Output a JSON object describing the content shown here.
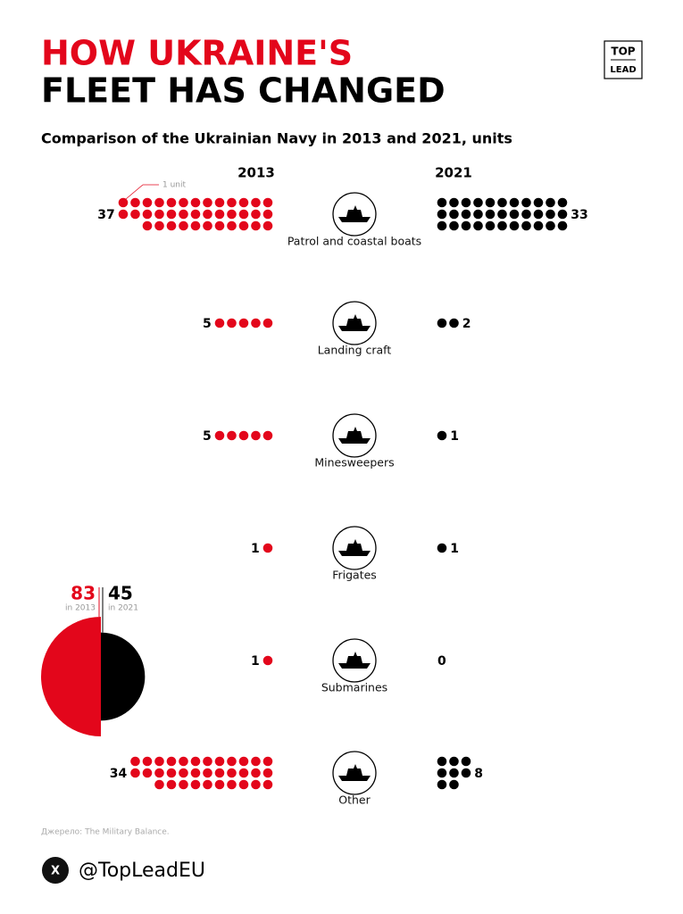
{
  "header": {
    "title_line1": "HOW UKRAINE'S",
    "title_line2": "FLEET HAS CHANGED",
    "subtitle": "Comparison of the Ukrainian Navy in 2013 and 2021, units",
    "logo_line1": "TOP",
    "logo_line2": "LEAD"
  },
  "chart_data": [
    {
      "type": "unit",
      "annotation": "1 unit",
      "categories": [
        "Patrol and coastal boats",
        "Landing craft",
        "Minesweepers",
        "Frigates",
        "Submarines",
        "Other"
      ],
      "series": [
        {
          "name": "2013",
          "color": "#e3061b",
          "values": [
            37,
            5,
            5,
            1,
            1,
            34
          ]
        },
        {
          "name": "2021",
          "color": "#000000",
          "values": [
            33,
            2,
            1,
            1,
            0,
            8
          ]
        }
      ]
    },
    {
      "type": "half-circles",
      "series": [
        {
          "name": "in 2013",
          "color": "#e3061b",
          "value": 83
        },
        {
          "name": "in 2021",
          "color": "#000000",
          "value": 45
        }
      ]
    }
  ],
  "footer": {
    "source": "Джерело: The Military Balance.",
    "handle": "@TopLeadEU",
    "icon": "X"
  }
}
